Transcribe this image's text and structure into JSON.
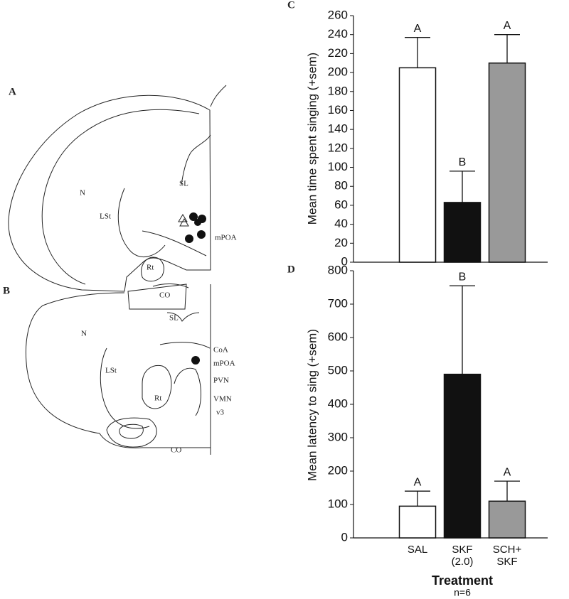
{
  "panels": [
    {
      "label": "A",
      "regions": [
        "N",
        "LSt",
        "SL",
        "mPOA",
        "Rt",
        "CO"
      ]
    },
    {
      "label": "B",
      "regions": [
        "N",
        "LSt",
        "SL",
        "CoA",
        "mPOA",
        "PVN",
        "VMN",
        "v3",
        "Rt",
        "CO"
      ]
    }
  ],
  "chart_data": [
    {
      "type": "bar",
      "panel": "C",
      "y_label": "Mean time spent singing (+sem)",
      "values": [
        205,
        63,
        210
      ],
      "errors": [
        32,
        33,
        30
      ],
      "letters": [
        "A",
        "B",
        "A"
      ],
      "colors": [
        "#ffffff",
        "#111111",
        "#999999"
      ],
      "ylim": [
        0,
        260
      ],
      "yticks": [
        0,
        20,
        40,
        60,
        80,
        100,
        120,
        140,
        160,
        180,
        200,
        220,
        240,
        260
      ]
    },
    {
      "type": "bar",
      "panel": "D",
      "y_label": "Mean latency to sing (+sem)",
      "x_label": "Treatment",
      "note": "n=6",
      "categories": [
        "SAL",
        "SKF\n(2.0)",
        "SCH+\nSKF"
      ],
      "values": [
        95,
        490,
        110
      ],
      "errors": [
        45,
        265,
        60
      ],
      "letters": [
        "A",
        "B",
        "A"
      ],
      "colors": [
        "#ffffff",
        "#111111",
        "#999999"
      ],
      "ylim": [
        0,
        800
      ],
      "yticks": [
        0,
        100,
        200,
        300,
        400,
        500,
        600,
        700,
        800
      ]
    }
  ]
}
